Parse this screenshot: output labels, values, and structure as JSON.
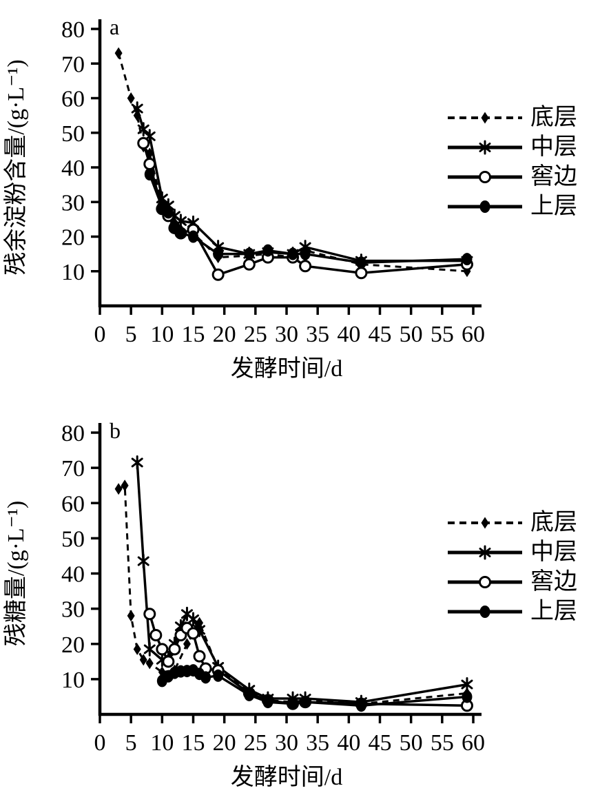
{
  "figure": {
    "background": "#ffffff",
    "ink_color": "#000000"
  },
  "chart_data": [
    {
      "id": "a",
      "type": "line",
      "panel_label": "a",
      "title": "",
      "xlabel": "发酵时间/d",
      "ylabel": "残余淀粉含量/(g·L⁻¹)",
      "xlim": [
        0,
        60
      ],
      "ylim": [
        0,
        80
      ],
      "xticks": [
        0,
        5,
        10,
        15,
        20,
        25,
        30,
        35,
        40,
        45,
        50,
        55,
        60
      ],
      "yticks": [
        10,
        20,
        30,
        40,
        50,
        60,
        70,
        80
      ],
      "grid": false,
      "legend_position": "right",
      "series": [
        {
          "key": "bottom-layer",
          "name": "底层",
          "line": "dashed",
          "marker": "diamond-filled",
          "points": [
            [
              3,
              73
            ],
            [
              5,
              60
            ],
            [
              6,
              55
            ],
            [
              7,
              46
            ],
            [
              8,
              44
            ],
            [
              10,
              29
            ],
            [
              11,
              27
            ],
            [
              12,
              24
            ],
            [
              13,
              22
            ],
            [
              15,
              21
            ],
            [
              19,
              14
            ],
            [
              24,
              14.5
            ],
            [
              27,
              15
            ],
            [
              31,
              14
            ],
            [
              33,
              16
            ],
            [
              42,
              12
            ],
            [
              59,
              10
            ]
          ]
        },
        {
          "key": "middle-layer",
          "name": "中层",
          "line": "solid",
          "marker": "asterisk",
          "points": [
            [
              6,
              57
            ],
            [
              7,
              51
            ],
            [
              8,
              49
            ],
            [
              10,
              31
            ],
            [
              11,
              29
            ],
            [
              12,
              26
            ],
            [
              13,
              24.5
            ],
            [
              15,
              24
            ],
            [
              19,
              17
            ],
            [
              24,
              15
            ],
            [
              27,
              15.5
            ],
            [
              31,
              15
            ],
            [
              33,
              17
            ],
            [
              42,
              13
            ],
            [
              59,
              13
            ]
          ]
        },
        {
          "key": "pit-edge",
          "name": "窖边",
          "line": "solid",
          "marker": "circle-open",
          "points": [
            [
              7,
              47
            ],
            [
              8,
              41
            ],
            [
              10,
              28
            ],
            [
              11,
              26
            ],
            [
              12,
              22.5
            ],
            [
              13,
              21
            ],
            [
              15,
              22
            ],
            [
              19,
              9
            ],
            [
              24,
              12
            ],
            [
              27,
              14
            ],
            [
              31,
              14
            ],
            [
              33,
              11.5
            ],
            [
              42,
              9.5
            ],
            [
              59,
              12
            ]
          ]
        },
        {
          "key": "top-layer",
          "name": "上层",
          "line": "solid",
          "marker": "circle-filled",
          "points": [
            [
              8,
              38
            ],
            [
              10,
              28.5
            ],
            [
              11,
              27
            ],
            [
              12,
              23
            ],
            [
              13,
              21
            ],
            [
              15,
              20
            ],
            [
              19,
              15
            ],
            [
              24,
              15
            ],
            [
              27,
              16
            ],
            [
              31,
              15
            ],
            [
              33,
              15
            ],
            [
              42,
              12.5
            ],
            [
              59,
              13.5
            ]
          ]
        }
      ]
    },
    {
      "id": "b",
      "type": "line",
      "panel_label": "b",
      "title": "",
      "xlabel": "发酵时间/d",
      "ylabel": "残糖量/(g·L⁻¹)",
      "xlim": [
        0,
        60
      ],
      "ylim": [
        0,
        80
      ],
      "xticks": [
        0,
        5,
        10,
        15,
        20,
        25,
        30,
        35,
        40,
        45,
        50,
        55,
        60
      ],
      "yticks": [
        10,
        20,
        30,
        40,
        50,
        60,
        70,
        80
      ],
      "grid": false,
      "legend_position": "right",
      "series": [
        {
          "key": "bottom-layer",
          "name": "底层",
          "line": "dashed",
          "marker": "diamond-filled",
          "points": [
            [
              3,
              64
            ],
            [
              4,
              65
            ],
            [
              5,
              28
            ],
            [
              6,
              18.5
            ],
            [
              7,
              15.5
            ],
            [
              8,
              14.5
            ],
            [
              10,
              12
            ],
            [
              12,
              12.5
            ],
            [
              14,
              20
            ],
            [
              16,
              26
            ],
            [
              19,
              13
            ],
            [
              24,
              6.5
            ],
            [
              27,
              4
            ],
            [
              31,
              3.5
            ],
            [
              33,
              4
            ],
            [
              42,
              3
            ],
            [
              59,
              6
            ]
          ]
        },
        {
          "key": "middle-layer",
          "name": "中层",
          "line": "solid",
          "marker": "asterisk",
          "points": [
            [
              6,
              71.5
            ],
            [
              7,
              43.5
            ],
            [
              8,
              18.5
            ],
            [
              10,
              15.5
            ],
            [
              11,
              16
            ],
            [
              12,
              20
            ],
            [
              13,
              25
            ],
            [
              14,
              28.5
            ],
            [
              15,
              27
            ],
            [
              16,
              24
            ],
            [
              19,
              13.5
            ],
            [
              24,
              7
            ],
            [
              27,
              4.5
            ],
            [
              31,
              4.5
            ],
            [
              33,
              4.5
            ],
            [
              42,
              3.5
            ],
            [
              59,
              8.5
            ]
          ]
        },
        {
          "key": "pit-edge",
          "name": "窖边",
          "line": "solid",
          "marker": "circle-open",
          "points": [
            [
              8,
              28.5
            ],
            [
              9,
              22.5
            ],
            [
              10,
              18.5
            ],
            [
              11,
              15
            ],
            [
              12,
              18.5
            ],
            [
              13,
              22.5
            ],
            [
              14,
              24.5
            ],
            [
              15,
              23
            ],
            [
              16,
              16.5
            ],
            [
              17,
              13
            ],
            [
              19,
              12.5
            ],
            [
              24,
              6
            ],
            [
              27,
              4
            ],
            [
              31,
              3
            ],
            [
              33,
              3.5
            ],
            [
              42,
              3
            ],
            [
              59,
              2.5
            ]
          ]
        },
        {
          "key": "top-layer",
          "name": "上层",
          "line": "solid",
          "marker": "circle-filled",
          "points": [
            [
              10,
              9.5
            ],
            [
              11,
              10.8
            ],
            [
              12,
              11.8
            ],
            [
              13,
              12.2
            ],
            [
              14,
              12.3
            ],
            [
              15,
              12.5
            ],
            [
              16,
              11.5
            ],
            [
              17,
              10.5
            ],
            [
              19,
              11
            ],
            [
              24,
              5.5
            ],
            [
              27,
              3.5
            ],
            [
              31,
              3
            ],
            [
              33,
              3.5
            ],
            [
              42,
              2.5
            ],
            [
              59,
              5
            ]
          ]
        }
      ]
    }
  ]
}
